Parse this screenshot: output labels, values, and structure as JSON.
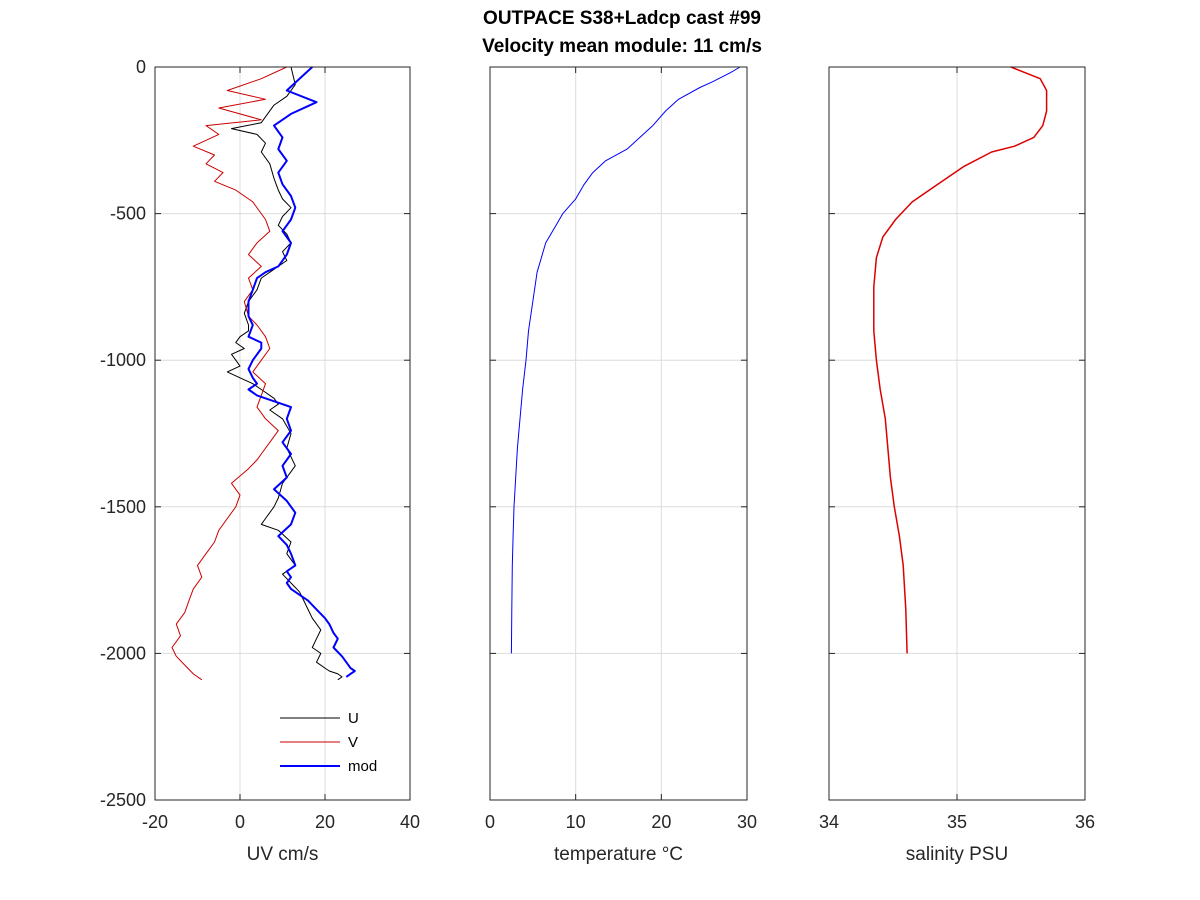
{
  "figure": {
    "title_line1": "OUTPACE S38+Ladcp cast #99",
    "title_line2": "Velocity mean module:  11 cm/s"
  },
  "chart_data": [
    {
      "type": "line",
      "xlabel": "UV cm/s",
      "ylabel": "",
      "xlim": [
        -20,
        40
      ],
      "ylim": [
        -2500,
        0
      ],
      "xticks": [
        -20,
        0,
        20,
        40
      ],
      "xtick_labels": [
        "-20",
        "0",
        "20",
        "40"
      ],
      "yticks": [
        0,
        -500,
        -1000,
        -1500,
        -2000,
        -2500
      ],
      "ytick_labels": [
        "0",
        "-500",
        "-1000",
        "-1500",
        "-2000",
        "-2500"
      ],
      "grid": true,
      "legend": "bottom-right",
      "series": [
        {
          "name": "U",
          "color": "#000000",
          "width": 1,
          "x": [
            12,
            13,
            11,
            8,
            6,
            5,
            -2,
            4,
            6,
            5,
            7,
            8,
            9,
            10,
            12,
            10,
            9,
            11,
            12,
            10,
            11,
            8,
            5,
            4,
            2,
            1,
            2,
            2,
            0,
            -1,
            1,
            -2,
            -1,
            0,
            -3,
            0,
            3,
            5,
            8,
            9,
            7,
            10,
            12,
            11,
            13,
            10,
            9,
            8,
            6,
            5,
            9,
            12,
            11,
            13,
            10,
            12,
            14,
            15,
            16,
            17,
            19,
            18,
            17,
            19,
            18,
            20,
            21,
            23,
            24,
            23
          ],
          "y": [
            0,
            -60,
            -100,
            -130,
            -170,
            -190,
            -210,
            -230,
            -260,
            -290,
            -330,
            -380,
            -420,
            -450,
            -480,
            -510,
            -540,
            -570,
            -600,
            -630,
            -660,
            -690,
            -720,
            -760,
            -800,
            -840,
            -880,
            -900,
            -920,
            -940,
            -960,
            -980,
            -1000,
            -1020,
            -1040,
            -1060,
            -1080,
            -1100,
            -1130,
            -1150,
            -1170,
            -1200,
            -1250,
            -1300,
            -1360,
            -1420,
            -1470,
            -1500,
            -1540,
            -1560,
            -1580,
            -1620,
            -1660,
            -1700,
            -1730,
            -1760,
            -1790,
            -1820,
            -1850,
            -1880,
            -1920,
            -1950,
            -1980,
            -2000,
            -2030,
            -2050,
            -2060,
            -2070,
            -2080,
            -2090
          ],
          "legend_label": "U"
        },
        {
          "name": "V",
          "color": "#cc0000",
          "width": 1,
          "x": [
            11,
            5,
            -3,
            6,
            -5,
            5,
            -8,
            -5,
            -11,
            -6,
            -8,
            -4,
            -6,
            -1,
            3,
            6,
            7,
            4,
            2,
            5,
            2,
            3,
            1,
            2,
            4,
            6,
            7,
            5,
            3,
            6,
            5,
            4,
            6,
            9,
            7,
            5,
            4,
            2,
            -2,
            0,
            -1,
            -3,
            -5,
            -6,
            -8,
            -10,
            -9,
            -11,
            -12,
            -13,
            -15,
            -14,
            -16,
            -15,
            -13,
            -11,
            -9
          ],
          "y": [
            0,
            -40,
            -80,
            -110,
            -140,
            -180,
            -200,
            -230,
            -270,
            -300,
            -330,
            -360,
            -390,
            -420,
            -460,
            -520,
            -560,
            -600,
            -640,
            -680,
            -720,
            -760,
            -800,
            -850,
            -880,
            -920,
            -960,
            -1000,
            -1040,
            -1080,
            -1120,
            -1160,
            -1200,
            -1240,
            -1280,
            -1320,
            -1340,
            -1370,
            -1420,
            -1460,
            -1500,
            -1540,
            -1580,
            -1620,
            -1660,
            -1700,
            -1740,
            -1780,
            -1820,
            -1860,
            -1900,
            -1940,
            -1980,
            -2010,
            -2040,
            -2070,
            -2090
          ],
          "legend_label": "V"
        },
        {
          "name": "mod",
          "color": "#0000ff",
          "width": 2,
          "x": [
            17,
            14,
            11,
            18,
            12,
            8,
            10,
            9,
            11,
            9,
            10,
            12,
            13,
            12,
            10,
            12,
            11,
            9,
            6,
            4,
            3,
            2,
            2,
            3,
            2,
            5,
            5,
            3,
            2,
            3,
            4,
            2,
            4,
            12,
            11,
            12,
            10,
            12,
            10,
            11,
            8,
            11,
            13,
            12,
            9,
            11,
            12,
            13,
            11,
            12,
            11,
            12,
            14,
            16,
            18,
            20,
            21,
            22,
            23,
            22,
            24,
            25,
            26,
            27,
            26,
            25
          ],
          "y": [
            0,
            -40,
            -80,
            -120,
            -160,
            -200,
            -240,
            -280,
            -320,
            -360,
            -400,
            -440,
            -480,
            -520,
            -560,
            -600,
            -640,
            -680,
            -700,
            -720,
            -760,
            -800,
            -850,
            -880,
            -920,
            -940,
            -960,
            -1000,
            -1030,
            -1060,
            -1080,
            -1100,
            -1120,
            -1160,
            -1200,
            -1240,
            -1280,
            -1320,
            -1360,
            -1400,
            -1440,
            -1480,
            -1520,
            -1560,
            -1600,
            -1630,
            -1660,
            -1700,
            -1720,
            -1740,
            -1760,
            -1780,
            -1800,
            -1820,
            -1850,
            -1880,
            -1900,
            -1930,
            -1950,
            -1980,
            -2010,
            -2030,
            -2050,
            -2060,
            -2070,
            -2080
          ],
          "legend_label": "mod"
        }
      ]
    },
    {
      "type": "line",
      "xlabel": "temperature °C",
      "ylabel": "",
      "xlim": [
        0,
        30
      ],
      "ylim": [
        -2500,
        0
      ],
      "xticks": [
        0,
        10,
        20,
        30
      ],
      "xtick_labels": [
        "0",
        "10",
        "20",
        "30"
      ],
      "yticks": [
        0,
        -500,
        -1000,
        -1500,
        -2000,
        -2500
      ],
      "ytick_labels": [],
      "grid": true,
      "series": [
        {
          "color": "#0000ff",
          "width": 1,
          "x": [
            29.2,
            28.0,
            26.0,
            24.5,
            22.0,
            20.5,
            19.0,
            17.5,
            16.0,
            13.5,
            12.0,
            11.0,
            10.0,
            8.5,
            7.5,
            6.5,
            6.0,
            5.5,
            5.0,
            4.5,
            4.2,
            3.8,
            3.5,
            3.2,
            3.0,
            2.8,
            2.7,
            2.6,
            2.55,
            2.5
          ],
          "y": [
            0,
            -20,
            -50,
            -70,
            -110,
            -150,
            -200,
            -240,
            -280,
            -320,
            -360,
            -400,
            -450,
            -500,
            -550,
            -600,
            -650,
            -700,
            -800,
            -900,
            -1000,
            -1100,
            -1200,
            -1300,
            -1400,
            -1500,
            -1600,
            -1700,
            -1850,
            -2000
          ]
        }
      ]
    },
    {
      "type": "line",
      "xlabel": "salinity PSU",
      "ylabel": "",
      "xlim": [
        34,
        36
      ],
      "ylim": [
        -2500,
        0
      ],
      "xticks": [
        34,
        35,
        36
      ],
      "xtick_labels": [
        "34",
        "35",
        "36"
      ],
      "yticks": [
        0,
        -500,
        -1000,
        -1500,
        -2000,
        -2500
      ],
      "ytick_labels": [],
      "grid": true,
      "series": [
        {
          "color": "#dd0000",
          "width": 1.5,
          "x": [
            35.42,
            35.65,
            35.7,
            35.7,
            35.67,
            35.6,
            35.45,
            35.27,
            35.05,
            34.85,
            34.65,
            34.52,
            34.42,
            34.37,
            34.35,
            34.35,
            34.37,
            34.4,
            34.44,
            34.48,
            34.51,
            34.55,
            34.58,
            34.6,
            34.61
          ],
          "y": [
            0,
            -40,
            -80,
            -150,
            -200,
            -240,
            -270,
            -290,
            -340,
            -400,
            -460,
            -520,
            -580,
            -650,
            -750,
            -900,
            -1000,
            -1100,
            -1200,
            -1400,
            -1500,
            -1600,
            -1700,
            -1850,
            -2000
          ]
        }
      ]
    }
  ]
}
